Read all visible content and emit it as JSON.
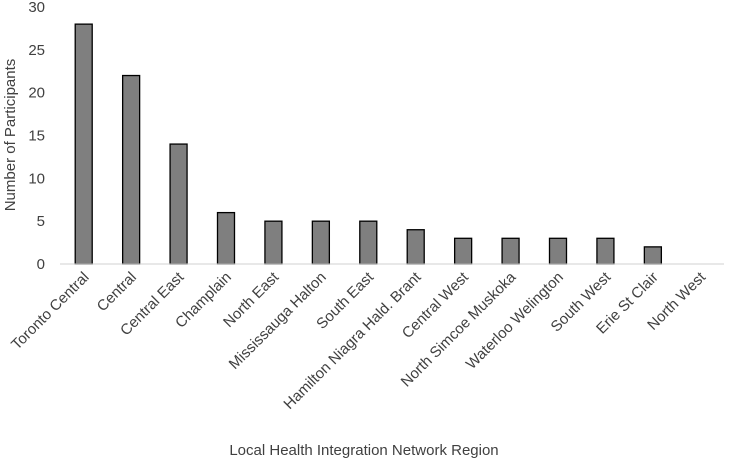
{
  "chart_data": {
    "type": "bar",
    "title": "",
    "xlabel": "Local Health Integration Network Region",
    "ylabel": "Number of Participants",
    "categories": [
      "Toronto Central",
      "Central",
      "Central East",
      "Champlain",
      "North East",
      "Mississauga Halton",
      "South East",
      "Hamilton Niagra Hald. Brant",
      "Central West",
      "North Simcoe Muskoka",
      "Waterloo Welington",
      "South West",
      "Erie St Clair",
      "North West"
    ],
    "values": [
      28,
      22,
      14,
      6,
      5,
      5,
      5,
      4,
      3,
      3,
      3,
      3,
      2,
      0
    ],
    "ylim": [
      0,
      30
    ],
    "yticks": [
      0,
      5,
      10,
      15,
      20,
      25,
      30
    ],
    "grid": false,
    "legend": "none",
    "colors": {
      "bar_fill": "#7f7f7f",
      "bar_stroke": "#000000",
      "axis": "#404040",
      "text": "#404040"
    }
  }
}
